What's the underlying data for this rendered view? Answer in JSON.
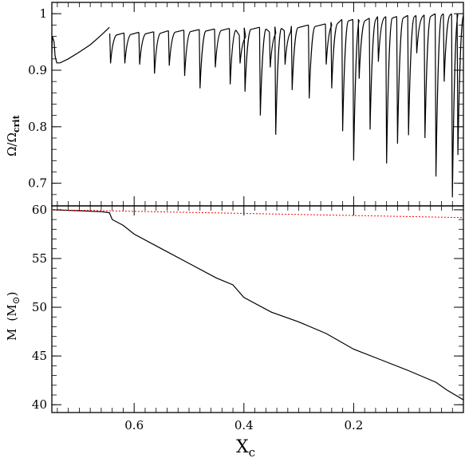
{
  "chart_data": [
    {
      "id": "omega",
      "type": "line",
      "ylabel_main": "Ω/Ω",
      "ylabel_sub": "crit",
      "xlim": [
        0.75,
        0.0
      ],
      "ylim": [
        0.66,
        1.02
      ],
      "y_ticks": [
        0.7,
        0.8,
        0.9,
        1.0
      ],
      "y_tick_labels": [
        "0.7",
        "0.8",
        "0.9",
        "1"
      ],
      "x_ticks": [
        0.6,
        0.4,
        0.2
      ],
      "grid": false,
      "style": {
        "color": "#000000"
      },
      "series": [
        {
          "x": [
            0.75,
            0.749,
            0.746,
            0.744,
            0.741,
            0.735,
            0.72,
            0.7,
            0.68,
            0.66,
            0.645
          ],
          "y": [
            0.93,
            0.96,
            0.95,
            0.925,
            0.913,
            0.913,
            0.92,
            0.932,
            0.945,
            0.962,
            0.976
          ]
        }
      ],
      "dips": [
        {
          "x": 0.643,
          "top": 0.965,
          "bottom": 0.912
        },
        {
          "x": 0.617,
          "top": 0.966,
          "bottom": 0.912
        },
        {
          "x": 0.59,
          "top": 0.967,
          "bottom": 0.91
        },
        {
          "x": 0.563,
          "top": 0.968,
          "bottom": 0.894
        },
        {
          "x": 0.536,
          "top": 0.97,
          "bottom": 0.908
        },
        {
          "x": 0.508,
          "top": 0.971,
          "bottom": 0.89
        },
        {
          "x": 0.48,
          "top": 0.972,
          "bottom": 0.868
        },
        {
          "x": 0.452,
          "top": 0.973,
          "bottom": 0.905
        },
        {
          "x": 0.425,
          "top": 0.974,
          "bottom": 0.875
        },
        {
          "x": 0.407,
          "top": 0.962,
          "bottom": 0.912
        },
        {
          "x": 0.398,
          "top": 0.975,
          "bottom": 0.862
        },
        {
          "x": 0.37,
          "top": 0.976,
          "bottom": 0.82
        },
        {
          "x": 0.352,
          "top": 0.968,
          "bottom": 0.905
        },
        {
          "x": 0.342,
          "top": 0.977,
          "bottom": 0.786
        },
        {
          "x": 0.325,
          "top": 0.97,
          "bottom": 0.91
        },
        {
          "x": 0.312,
          "top": 0.978,
          "bottom": 0.865
        },
        {
          "x": 0.281,
          "top": 0.98,
          "bottom": 0.85
        },
        {
          "x": 0.25,
          "top": 0.982,
          "bottom": 0.91
        },
        {
          "x": 0.24,
          "top": 0.985,
          "bottom": 0.868
        },
        {
          "x": 0.22,
          "top": 0.99,
          "bottom": 0.792
        },
        {
          "x": 0.2,
          "top": 0.99,
          "bottom": 0.74
        },
        {
          "x": 0.19,
          "top": 0.99,
          "bottom": 0.885
        },
        {
          "x": 0.17,
          "top": 0.992,
          "bottom": 0.795
        },
        {
          "x": 0.155,
          "top": 0.995,
          "bottom": 0.915
        },
        {
          "x": 0.14,
          "top": 0.995,
          "bottom": 0.735
        },
        {
          "x": 0.12,
          "top": 0.995,
          "bottom": 0.77
        },
        {
          "x": 0.1,
          "top": 0.997,
          "bottom": 0.785
        },
        {
          "x": 0.085,
          "top": 0.997,
          "bottom": 0.93
        },
        {
          "x": 0.07,
          "top": 0.998,
          "bottom": 0.78
        },
        {
          "x": 0.05,
          "top": 1.0,
          "bottom": 0.712
        },
        {
          "x": 0.035,
          "top": 1.0,
          "bottom": 0.88
        },
        {
          "x": 0.02,
          "top": 1.0,
          "bottom": 0.675
        },
        {
          "x": 0.01,
          "top": 1.0,
          "bottom": 0.75
        }
      ]
    },
    {
      "id": "mass",
      "type": "line",
      "ylabel_main": "M",
      "ylabel_unit": "(M",
      "ylabel_unit_end": ")",
      "xlabel_main": "X",
      "xlabel_sub": "c",
      "xlim": [
        0.75,
        0.0
      ],
      "ylim": [
        39.2,
        60.4
      ],
      "y_ticks": [
        40,
        45,
        50,
        55,
        60
      ],
      "y_tick_labels": [
        "40",
        "45",
        "50",
        "55",
        "60"
      ],
      "x_ticks": [
        0.6,
        0.4,
        0.2
      ],
      "x_tick_labels": [
        "0.6",
        "0.4",
        "0.2"
      ],
      "grid": false,
      "series": [
        {
          "style": "solid",
          "color": "#000000",
          "x": [
            0.75,
            0.7,
            0.66,
            0.645,
            0.64,
            0.62,
            0.6,
            0.55,
            0.5,
            0.45,
            0.42,
            0.4,
            0.35,
            0.3,
            0.25,
            0.2,
            0.15,
            0.1,
            0.05,
            0.03,
            0.0
          ],
          "y": [
            60.0,
            59.9,
            59.8,
            59.7,
            59.0,
            58.4,
            57.5,
            56.0,
            54.5,
            53.0,
            52.3,
            51.0,
            49.5,
            48.5,
            47.3,
            45.7,
            44.6,
            43.5,
            42.3,
            41.5,
            40.5
          ]
        },
        {
          "style": "dotted",
          "color": "#ff0000",
          "x": [
            0.75,
            0.0
          ],
          "y": [
            60.0,
            59.2
          ]
        }
      ]
    }
  ]
}
